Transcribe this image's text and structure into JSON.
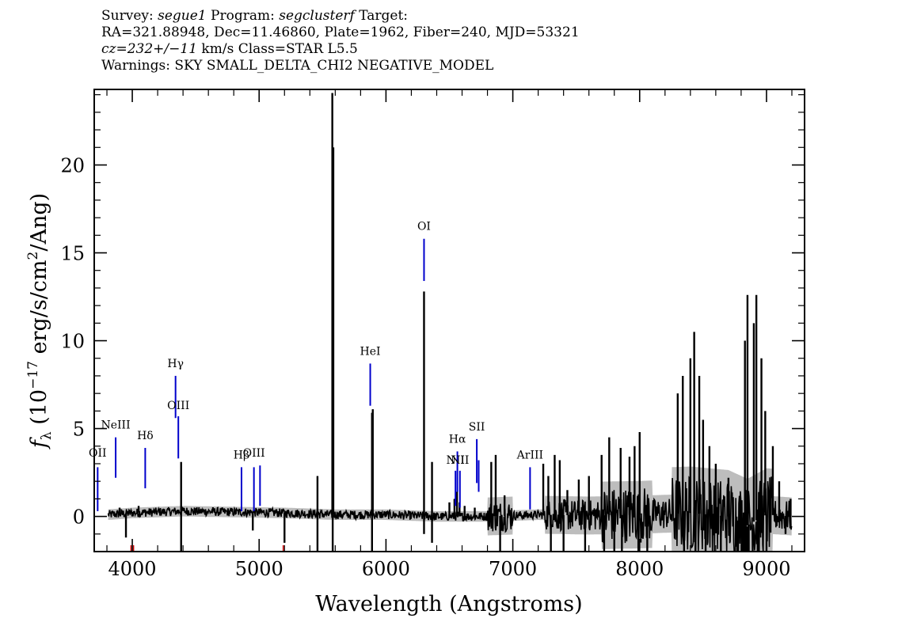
{
  "header": {
    "line1": {
      "survey_label": "Survey:",
      "survey": "segue1",
      "program_label": "Program:",
      "program": "segclusterf",
      "target_label": "Target:"
    },
    "line2": "RA=321.88948, Dec=11.46860, Plate=1962, Fiber=240, MJD=53321",
    "line3": {
      "cz": "cz=232+/−11",
      "rest": " km/s Class=STAR L5.5"
    },
    "line4": "Warnings: SKY SMALL_DELTA_CHI2 NEGATIVE_MODEL"
  },
  "chart_data": {
    "type": "line",
    "xlabel": "Wavelength (Angstroms)",
    "ylabel": {
      "symbol": "f",
      "subscript": "λ",
      "units_prefix": " (10",
      "exponent": "−17",
      "units_mid": " erg/s/cm",
      "units_exp": "2",
      "units_suffix": "/Ang)"
    },
    "xlim": [
      3700,
      9300
    ],
    "ylim": [
      -2,
      24.3
    ],
    "x_ticks": [
      4000,
      5000,
      6000,
      7000,
      8000,
      9000
    ],
    "y_ticks": [
      0,
      5,
      10,
      15,
      20
    ],
    "colors": {
      "spectrum": "#000000",
      "error_band": "#bdbdbd",
      "line_marker": "#0000cc",
      "bad_pixel": "#cc0000"
    },
    "spectrum": {
      "x_start": 3810,
      "x_end": 9200,
      "baseline": [
        [
          3810,
          0.1
        ],
        [
          4000,
          0.2
        ],
        [
          4400,
          0.3
        ],
        [
          4800,
          0.25
        ],
        [
          5200,
          0.2
        ],
        [
          5600,
          0.1
        ],
        [
          6000,
          0.1
        ],
        [
          6400,
          0.0
        ],
        [
          6800,
          0.0
        ],
        [
          7200,
          0.1
        ],
        [
          7600,
          0.05
        ],
        [
          8000,
          0.1
        ],
        [
          8400,
          0.2
        ],
        [
          8700,
          0.0
        ],
        [
          8850,
          -0.5
        ],
        [
          9000,
          0.1
        ],
        [
          9200,
          0.0
        ]
      ],
      "spikes": [
        [
          3900,
          0.5
        ],
        [
          3950,
          -1.2
        ],
        [
          4050,
          0.6
        ],
        [
          4385,
          3.1
        ],
        [
          4385,
          -2.0
        ],
        [
          4950,
          -0.8
        ],
        [
          5200,
          -1.5
        ],
        [
          5460,
          2.3
        ],
        [
          5460,
          -2.0
        ],
        [
          5577,
          24.1
        ],
        [
          5585,
          21.0
        ],
        [
          5580,
          -2.0
        ],
        [
          5890,
          5.9
        ],
        [
          5896,
          6.1
        ],
        [
          5890,
          -2.0
        ],
        [
          6300,
          12.8
        ],
        [
          6300,
          -1.0
        ],
        [
          6363,
          3.1
        ],
        [
          6363,
          -1.5
        ],
        [
          6500,
          0.8
        ],
        [
          6540,
          1.0
        ],
        [
          6560,
          1.4
        ],
        [
          6580,
          0.8
        ],
        [
          6620,
          0.6
        ],
        [
          6700,
          0.5
        ],
        [
          6830,
          3.1
        ],
        [
          6865,
          3.5
        ],
        [
          6900,
          -2.0
        ],
        [
          6935,
          1.2
        ],
        [
          7240,
          3.0
        ],
        [
          7280,
          2.3
        ],
        [
          7300,
          -2.0
        ],
        [
          7330,
          3.5
        ],
        [
          7370,
          3.2
        ],
        [
          7400,
          -2.0
        ],
        [
          7430,
          1.5
        ],
        [
          7520,
          2.1
        ],
        [
          7570,
          -2.0
        ],
        [
          7600,
          2.3
        ],
        [
          7700,
          3.5
        ],
        [
          7720,
          -2.0
        ],
        [
          7760,
          4.5
        ],
        [
          7800,
          -2.0
        ],
        [
          7850,
          3.9
        ],
        [
          7860,
          -2.0
        ],
        [
          7920,
          3.4
        ],
        [
          7960,
          4.0
        ],
        [
          7990,
          -2.0
        ],
        [
          8000,
          4.8
        ],
        [
          8060,
          -2.0
        ],
        [
          8300,
          7.0
        ],
        [
          8340,
          8.0
        ],
        [
          8350,
          -2.0
        ],
        [
          8400,
          9.0
        ],
        [
          8430,
          10.5
        ],
        [
          8440,
          -2.0
        ],
        [
          8470,
          8.0
        ],
        [
          8500,
          5.5
        ],
        [
          8520,
          -2.0
        ],
        [
          8550,
          4.0
        ],
        [
          8600,
          3.0
        ],
        [
          8640,
          -2.0
        ],
        [
          8700,
          2.2
        ],
        [
          8770,
          -2.0
        ],
        [
          8830,
          10.0
        ],
        [
          8850,
          12.6
        ],
        [
          8860,
          -2.0
        ],
        [
          8900,
          11.0
        ],
        [
          8920,
          12.6
        ],
        [
          8930,
          -2.0
        ],
        [
          8960,
          9.0
        ],
        [
          8990,
          6.0
        ],
        [
          9000,
          -2.0
        ],
        [
          9050,
          4.0
        ],
        [
          9100,
          2.0
        ],
        [
          9150,
          -1.0
        ],
        [
          9190,
          1.0
        ]
      ]
    },
    "line_markers": [
      {
        "label": "OII",
        "x": 3727,
        "y_low": 0.3,
        "y_high": 2.8,
        "label_y": 3.4
      },
      {
        "label": "NeIII",
        "x": 3869,
        "y_low": 2.2,
        "y_high": 4.5,
        "label_y": 5.0
      },
      {
        "label": "Hδ",
        "x": 4102,
        "y_low": 1.6,
        "y_high": 3.9,
        "label_y": 4.4
      },
      {
        "label": "Hγ",
        "x": 4341,
        "y_low": 5.6,
        "y_high": 8.0,
        "label_y": 8.5
      },
      {
        "label": "OIII",
        "x": 4363,
        "y_low": 3.3,
        "y_high": 5.7,
        "label_y": 6.1
      },
      {
        "label": "Hβ",
        "x": 4861,
        "y_low": 0.3,
        "y_high": 2.8,
        "label_y": 3.3
      },
      {
        "label": "OIII",
        "x": 4959,
        "y_low": 0.3,
        "y_high": 2.8,
        "label_y": 3.4
      },
      {
        "label": "",
        "x": 5007,
        "y_low": 0.6,
        "y_high": 2.9,
        "label_y": 3.4
      },
      {
        "label": "HeI",
        "x": 5876,
        "y_low": 6.3,
        "y_high": 8.7,
        "label_y": 9.2
      },
      {
        "label": "OI",
        "x": 6300,
        "y_low": 13.4,
        "y_high": 15.8,
        "label_y": 16.3
      },
      {
        "label": "NII",
        "x": 6548,
        "y_low": 0.6,
        "y_high": 2.6,
        "label_y": 3.0
      },
      {
        "label": "Hα",
        "x": 6563,
        "y_low": 1.4,
        "y_high": 3.7,
        "label_y": 4.2
      },
      {
        "label": "NII",
        "x": 6583,
        "y_low": 0.5,
        "y_high": 2.6,
        "label_y": 3.0
      },
      {
        "label": "SII",
        "x": 6716,
        "y_low": 1.9,
        "y_high": 4.4,
        "label_y": 4.9
      },
      {
        "label": "",
        "x": 6731,
        "y_low": 1.4,
        "y_high": 3.2,
        "label_y": 3.7
      },
      {
        "label": "ArIII",
        "x": 7136,
        "y_low": 0.4,
        "y_high": 2.8,
        "label_y": 3.3
      }
    ],
    "bad_pixels": [
      3990,
      4010,
      5190
    ]
  }
}
